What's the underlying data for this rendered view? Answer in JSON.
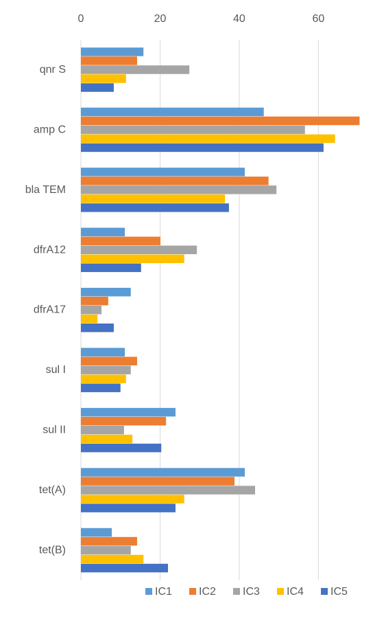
{
  "chart_data": {
    "type": "bar",
    "orientation": "horizontal",
    "categories": [
      "qnr S",
      "amp C",
      "bla TEM",
      "dfrA12",
      "dfrA17",
      "sul I",
      "sul II",
      "tet(A)",
      "tet(B)"
    ],
    "series": [
      {
        "name": "IC1",
        "color": "#5b9bd5",
        "values": [
          15.8,
          46.2,
          41.4,
          11.1,
          12.6,
          11.1,
          23.9,
          41.4,
          7.8
        ]
      },
      {
        "name": "IC2",
        "color": "#ed7d31",
        "values": [
          14.2,
          70.4,
          47.4,
          20.1,
          6.9,
          14.2,
          21.5,
          38.8,
          14.2
        ]
      },
      {
        "name": "IC3",
        "color": "#a5a5a5",
        "values": [
          27.4,
          56.6,
          49.4,
          29.3,
          5.2,
          12.6,
          10.9,
          44.0,
          12.6
        ]
      },
      {
        "name": "IC4",
        "color": "#ffc000",
        "values": [
          11.4,
          64.2,
          36.4,
          26.1,
          4.2,
          11.4,
          13.0,
          26.1,
          15.8
        ]
      },
      {
        "name": "IC5",
        "color": "#4472c4",
        "values": [
          8.3,
          61.3,
          37.4,
          15.2,
          8.3,
          10.0,
          20.3,
          23.9,
          22.0
        ]
      }
    ],
    "xlim": [
      0,
      70.5
    ],
    "xticks": [
      0,
      20,
      40,
      60
    ],
    "grid": true,
    "legend": "bottom"
  }
}
